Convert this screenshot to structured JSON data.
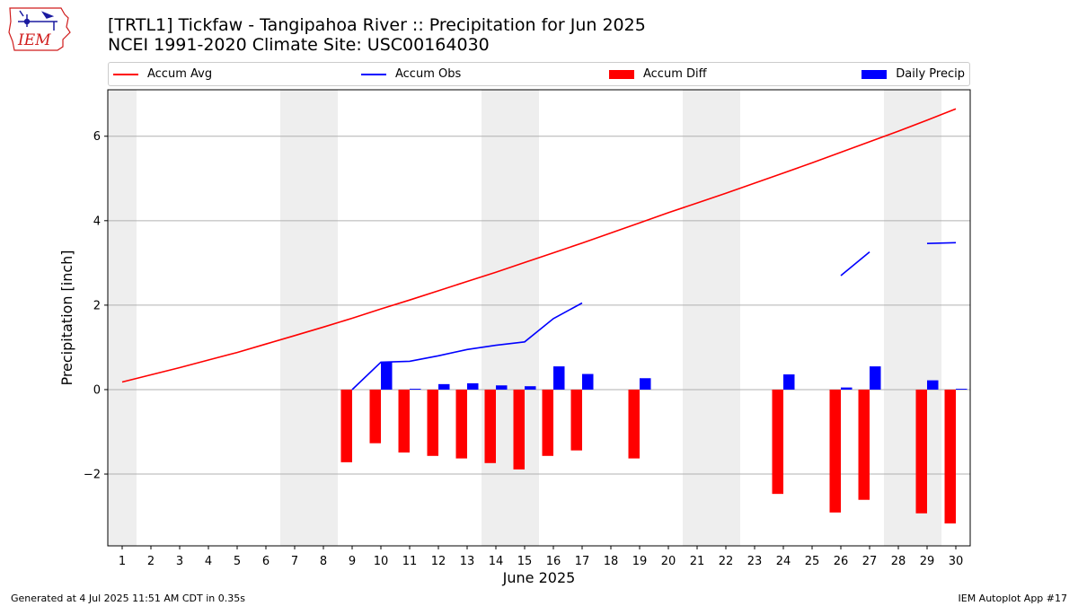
{
  "title_line1": "[TRTL1] Tickfaw - Tangipahoa River :: Precipitation for Jun 2025",
  "title_line2": "NCEI 1991-2020 Climate Site: USC00164030",
  "logo": {
    "text": "IEM",
    "colors": {
      "outline": "#d01c1c",
      "text": "#d01c1c",
      "mark": "#1a1aa0"
    }
  },
  "legend": [
    {
      "label": "Accum Avg",
      "kind": "line",
      "color": "#ff0000"
    },
    {
      "label": "Accum Obs",
      "kind": "line",
      "color": "#0000ff"
    },
    {
      "label": "Accum Diff",
      "kind": "bar",
      "color": "#ff0000"
    },
    {
      "label": "Daily Precip",
      "kind": "bar",
      "color": "#0000ff"
    }
  ],
  "footer_left": "Generated at 4 Jul 2025 11:51 AM CDT in 0.35s",
  "footer_right": "IEM Autoplot App #17",
  "chart_data": {
    "type": "bar",
    "xlabel": "June 2025",
    "ylabel": "Precipitation [inch]",
    "xlim": [
      0.5,
      30.5
    ],
    "ylim": [
      -3.7,
      7.1
    ],
    "yticks": [
      -2,
      0,
      2,
      4,
      6
    ],
    "ytick_labels": [
      "−2",
      "0",
      "2",
      "4",
      "6"
    ],
    "grid": "y",
    "legend_position": "top",
    "weekend_shading": [
      [
        0.5,
        1.5
      ],
      [
        6.5,
        8.5
      ],
      [
        13.5,
        15.5
      ],
      [
        20.5,
        22.5
      ],
      [
        27.5,
        29.5
      ]
    ],
    "days": [
      1,
      2,
      3,
      4,
      5,
      6,
      7,
      8,
      9,
      10,
      11,
      12,
      13,
      14,
      15,
      16,
      17,
      18,
      19,
      20,
      21,
      22,
      23,
      24,
      25,
      26,
      27,
      28,
      29,
      30
    ],
    "series": [
      {
        "name": "Accum Avg",
        "kind": "line",
        "color": "#ff0000",
        "values": [
          0.18,
          0.35,
          0.52,
          0.7,
          0.88,
          1.08,
          1.28,
          1.48,
          1.69,
          1.91,
          2.12,
          2.34,
          2.56,
          2.78,
          3.01,
          3.24,
          3.47,
          3.71,
          3.95,
          4.19,
          4.42,
          4.65,
          4.89,
          5.13,
          5.37,
          5.62,
          5.87,
          6.12,
          6.38,
          6.65
        ]
      },
      {
        "name": "Accum Obs",
        "kind": "line",
        "color": "#0000ff",
        "values": [
          null,
          null,
          null,
          null,
          null,
          null,
          null,
          null,
          0.0,
          0.65,
          0.67,
          0.8,
          0.95,
          1.05,
          1.13,
          1.68,
          2.05,
          null,
          null,
          null,
          null,
          null,
          null,
          null,
          null,
          2.7,
          3.26,
          null,
          3.46,
          3.48
        ]
      },
      {
        "name": "Accum Diff",
        "kind": "bar",
        "color": "#ff0000",
        "values": [
          null,
          null,
          null,
          null,
          null,
          null,
          null,
          null,
          -1.72,
          -1.27,
          -1.49,
          -1.57,
          -1.63,
          -1.74,
          -1.89,
          -1.57,
          -1.44,
          null,
          -1.63,
          null,
          null,
          null,
          null,
          -2.47,
          null,
          -2.91,
          -2.61,
          null,
          -2.93,
          -3.17
        ]
      },
      {
        "name": "Daily Precip",
        "kind": "bar",
        "color": "#0000ff",
        "values": [
          null,
          null,
          null,
          null,
          null,
          null,
          null,
          null,
          null,
          0.65,
          0.02,
          0.13,
          0.15,
          0.1,
          0.08,
          0.55,
          0.37,
          null,
          0.27,
          null,
          null,
          null,
          null,
          0.36,
          null,
          0.05,
          0.55,
          null,
          0.22,
          0.02
        ]
      }
    ]
  }
}
